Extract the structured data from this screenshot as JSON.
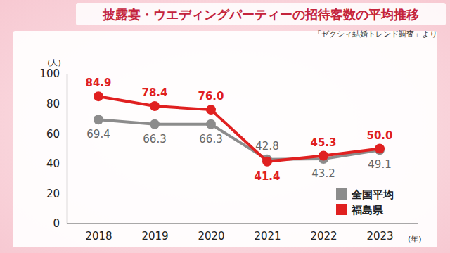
{
  "chart_data": {
    "type": "line",
    "title": "披露宴・ウエディングパーティーの招待客数の平均推移",
    "annotations": [
      "「ゼクシィ結婚トレンド調査」より"
    ],
    "y_label": "(人)",
    "x_label": "(年)",
    "categories": [
      "2018",
      "2019",
      "2020",
      "2021",
      "2022",
      "2023"
    ],
    "series": [
      {
        "name": "全国平均",
        "color": "#8c8c8c",
        "marker": "circle",
        "values": [
          69.4,
          66.3,
          66.3,
          42.8,
          43.2,
          49.1
        ]
      },
      {
        "name": "福島県",
        "color": "#e02020",
        "marker": "circle",
        "values": [
          84.9,
          78.4,
          76.0,
          41.4,
          45.3,
          50.0
        ],
        "value_labels": [
          "84.9",
          "78.4",
          "76.0",
          "41.4",
          "45.3",
          "50.0"
        ]
      }
    ],
    "ylim": [
      0,
      100
    ],
    "yticks": [
      0,
      20,
      40,
      60,
      80,
      100
    ],
    "grid": false,
    "legend": "lower right",
    "data_labels": true
  }
}
